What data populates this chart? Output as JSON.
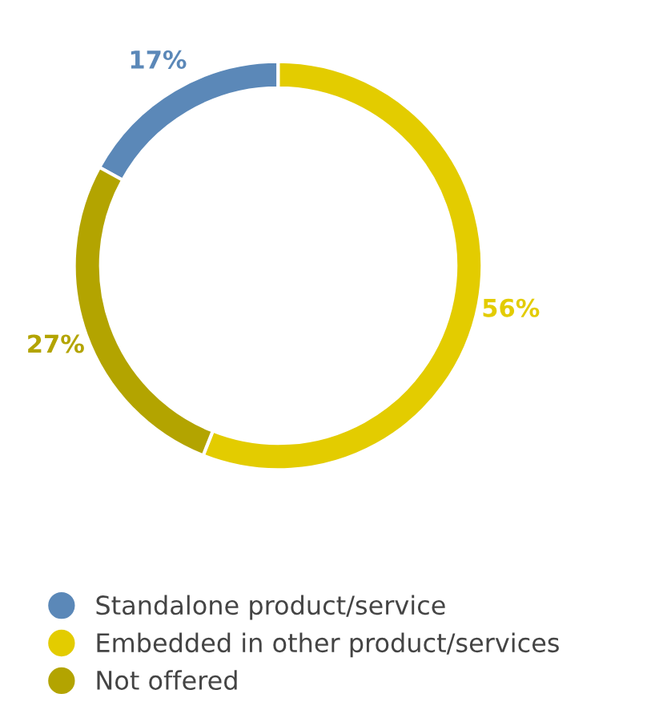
{
  "chart_data": {
    "type": "donut",
    "categories": [
      "Standalone product/service",
      "Embedded in other product/services",
      "Not offered"
    ],
    "values": [
      17,
      56,
      27
    ],
    "colors": [
      "#5b88b8",
      "#e3cc00",
      "#b3a400"
    ],
    "value_labels": [
      "17%",
      "56%",
      "27%"
    ],
    "legend": "bottom"
  }
}
